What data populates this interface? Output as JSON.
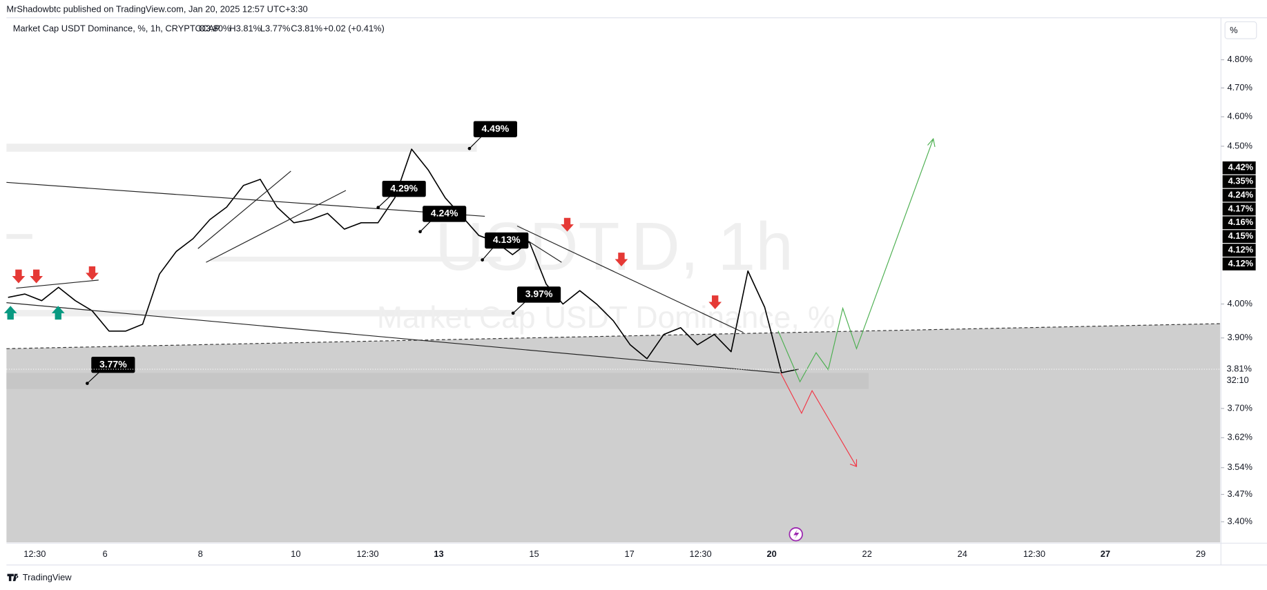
{
  "header": {
    "publisher": "MrShadowbtc published on TradingView.com, Jan 20, 2025 12:57 UTC+3:30"
  },
  "legend": {
    "symbol": "Market Cap USDT Dominance, %, 1h, CRYPTOCAP",
    "ohlc": [
      "O3.80%",
      "H3.81%",
      "L3.77%",
      "C3.81%"
    ],
    "change": "+0.02 (+0.41%)"
  },
  "watermark": [
    "USDT.D, 1h",
    "Market Cap USDT Dominance, %"
  ],
  "scale_button": "%",
  "footer": "TradingView",
  "chart_data": {
    "type": "line",
    "color": "#000000",
    "log_scale": true,
    "values": [
      4.02,
      4.03,
      4.01,
      4.05,
      4.01,
      3.98,
      3.92,
      3.92,
      3.94,
      4.09,
      4.16,
      4.2,
      4.26,
      4.3,
      4.37,
      4.39,
      4.3,
      4.25,
      4.26,
      4.28,
      4.23,
      4.25,
      4.25,
      4.33,
      4.49,
      4.42,
      4.33,
      4.27,
      4.21,
      4.19,
      4.15,
      4.19,
      4.06,
      4.0,
      4.04,
      4.0,
      3.95,
      3.88,
      3.84,
      3.91,
      3.93,
      3.88,
      3.91,
      3.86,
      4.1,
      3.99,
      3.8,
      3.81
    ],
    "ylim": [
      3.35,
      4.87
    ],
    "yticks": [
      {
        "value": 4.8,
        "label": "4.80%"
      },
      {
        "value": 4.7,
        "label": "4.70%"
      },
      {
        "value": 4.6,
        "label": "4.60%"
      },
      {
        "value": 4.5,
        "label": "4.50%"
      },
      {
        "value": 4.0,
        "label": "4.00%"
      },
      {
        "value": 3.9,
        "label": "3.90%"
      },
      {
        "value": 3.7,
        "label": "3.70%"
      },
      {
        "value": 3.62,
        "label": "3.62%"
      },
      {
        "value": 3.54,
        "label": "3.54%"
      },
      {
        "value": 3.47,
        "label": "3.47%"
      },
      {
        "value": 3.4,
        "label": "3.40%"
      }
    ],
    "x_labels": [
      "12:30",
      "6",
      "8",
      "10",
      "12:30",
      "13",
      "15",
      "17",
      "12:30",
      "20",
      "22",
      "24",
      "12:30",
      "27",
      "29"
    ],
    "price_badges": [
      "4.42%",
      "4.35%",
      "4.24%",
      "4.17%",
      "4.16%",
      "4.15%",
      "4.12%",
      "4.12%"
    ],
    "last_price": {
      "value": 3.81,
      "label": "3.81%"
    },
    "countdown": "32:10",
    "annotations": [
      "4.49%",
      "4.29%",
      "4.24%",
      "4.13%",
      "3.97%",
      "3.77%"
    ]
  }
}
